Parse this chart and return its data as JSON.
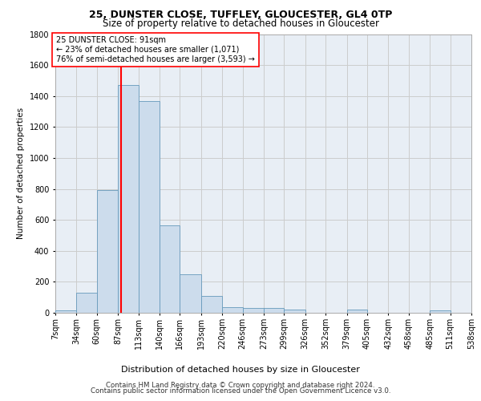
{
  "title1": "25, DUNSTER CLOSE, TUFFLEY, GLOUCESTER, GL4 0TP",
  "title2": "Size of property relative to detached houses in Gloucester",
  "xlabel": "Distribution of detached houses by size in Gloucester",
  "ylabel": "Number of detached properties",
  "bar_color": "#ccdcec",
  "bar_edge_color": "#6699bb",
  "grid_color": "#cccccc",
  "bg_color": "#e8eef5",
  "red_line_x": 91,
  "annotation_line1": "25 DUNSTER CLOSE: 91sqm",
  "annotation_line2": "← 23% of detached houses are smaller (1,071)",
  "annotation_line3": "76% of semi-detached houses are larger (3,593) →",
  "bin_edges": [
    7,
    34,
    60,
    87,
    113,
    140,
    166,
    193,
    220,
    246,
    273,
    299,
    326,
    352,
    379,
    405,
    432,
    458,
    485,
    511,
    538
  ],
  "bar_heights": [
    15,
    130,
    795,
    1470,
    1370,
    565,
    250,
    110,
    35,
    30,
    30,
    20,
    0,
    0,
    20,
    0,
    0,
    0,
    15,
    0
  ],
  "ylim": [
    0,
    1800
  ],
  "yticks": [
    0,
    200,
    400,
    600,
    800,
    1000,
    1200,
    1400,
    1600,
    1800
  ],
  "footer1": "Contains HM Land Registry data © Crown copyright and database right 2024.",
  "footer2": "Contains public sector information licensed under the Open Government Licence v3.0."
}
